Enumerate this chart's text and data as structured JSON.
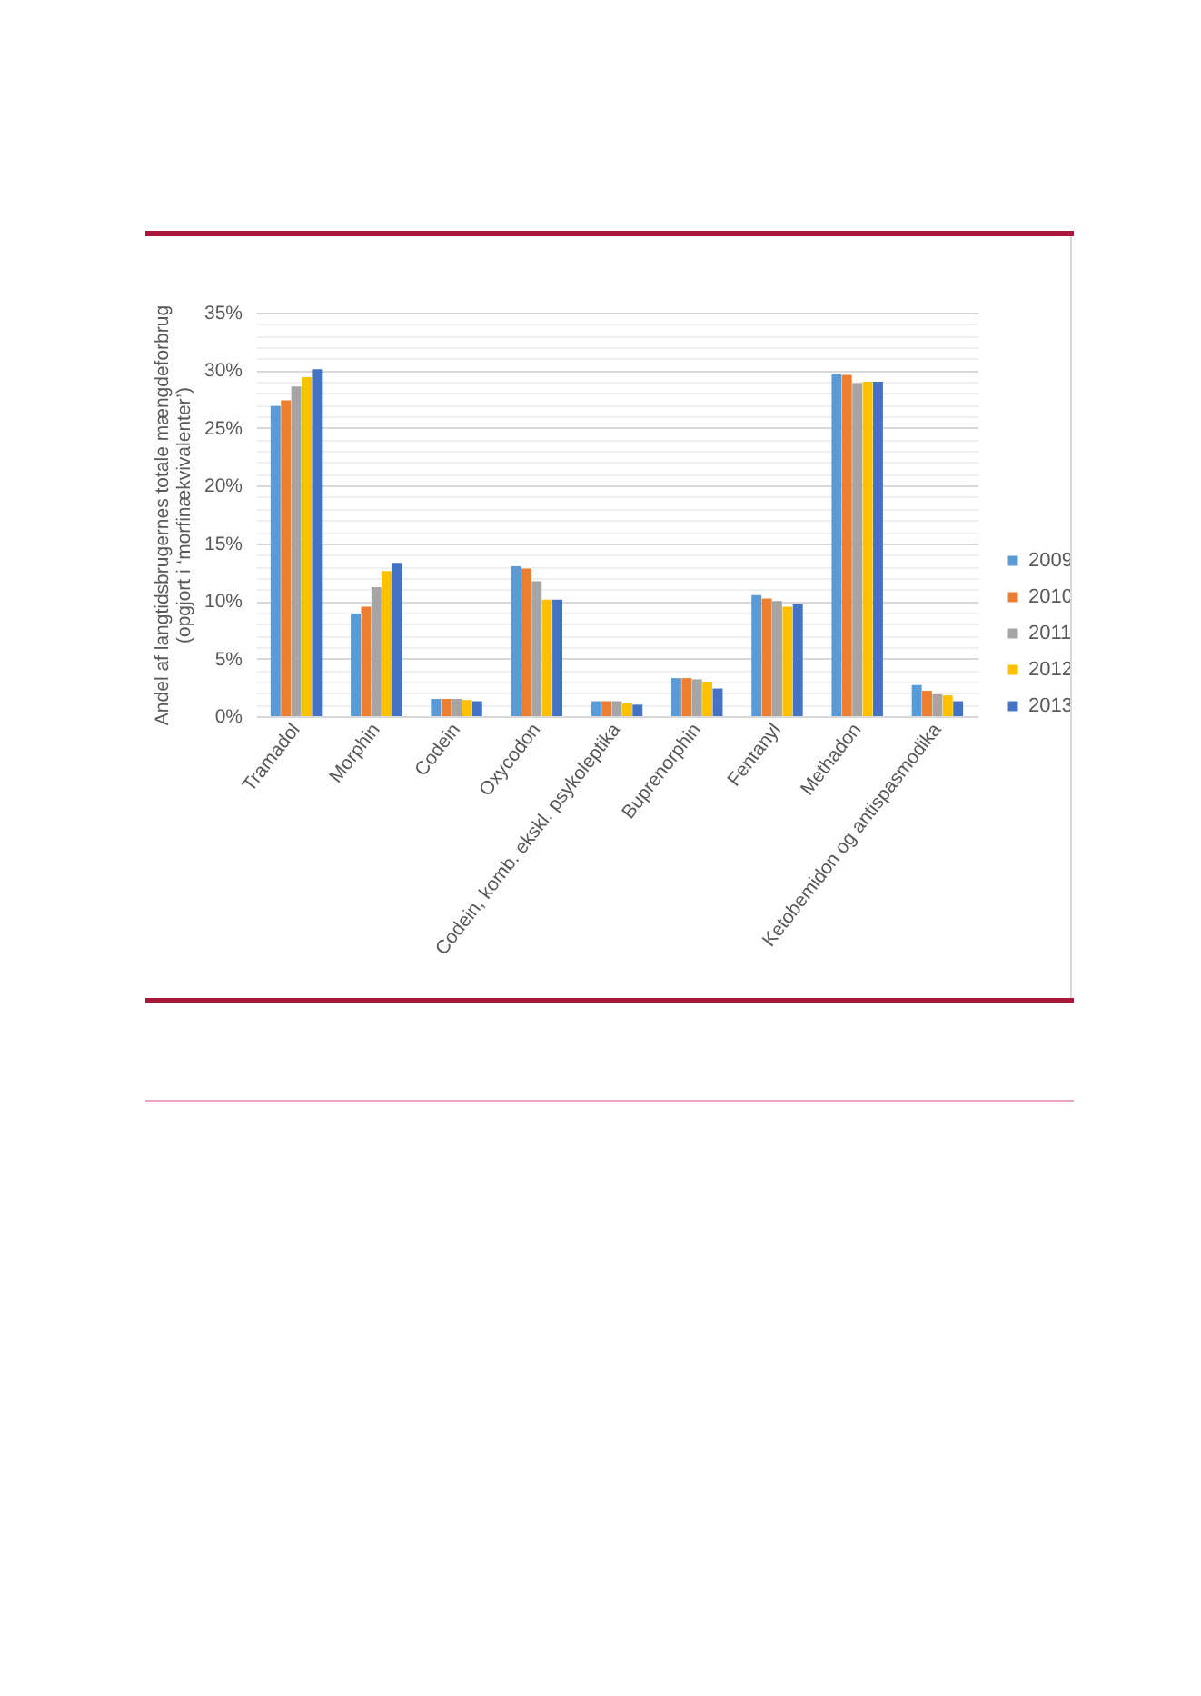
{
  "chart_data": {
    "type": "bar",
    "ylabel": "Andel af langtidsbrugernes totale mængdeforbrug\n(opgjort i ‘morfinækvivalenter’)",
    "categories": [
      "Tramadol",
      "Morphin",
      "Codein",
      "Oxycodon",
      "Codein, komb. ekskl. psykoleptika",
      "Buprenorphin",
      "Fentanyl",
      "Methadon",
      "Ketobemidon og antispasmodika"
    ],
    "series": [
      {
        "name": "2009",
        "color": "#5b9bd5",
        "values": [
          26.9,
          8.9,
          1.5,
          13.0,
          1.3,
          3.3,
          10.5,
          29.7,
          2.7
        ]
      },
      {
        "name": "2010",
        "color": "#ed7d31",
        "values": [
          27.4,
          9.5,
          1.5,
          12.8,
          1.3,
          3.3,
          10.2,
          29.6,
          2.2
        ]
      },
      {
        "name": "2011",
        "color": "#a5a5a5",
        "values": [
          28.6,
          11.2,
          1.5,
          11.7,
          1.3,
          3.2,
          10.0,
          28.9,
          1.9
        ]
      },
      {
        "name": "2012",
        "color": "#ffc000",
        "values": [
          29.4,
          12.6,
          1.4,
          10.1,
          1.1,
          3.0,
          9.5,
          29.0,
          1.8
        ]
      },
      {
        "name": "2013",
        "color": "#4472c4",
        "values": [
          30.1,
          13.3,
          1.3,
          10.1,
          1.0,
          2.4,
          9.7,
          29.0,
          1.3
        ]
      }
    ],
    "ylim": [
      0,
      35
    ],
    "yticks": [
      {
        "value": 0,
        "label": "0%"
      },
      {
        "value": 1,
        "label": null
      },
      {
        "value": 2,
        "label": null
      },
      {
        "value": 3,
        "label": null
      },
      {
        "value": 4,
        "label": null
      },
      {
        "value": 5,
        "label": "5%"
      },
      {
        "value": 6,
        "label": null
      },
      {
        "value": 7,
        "label": null
      },
      {
        "value": 8,
        "label": null
      },
      {
        "value": 9,
        "label": null
      },
      {
        "value": 10,
        "label": "10%"
      },
      {
        "value": 11,
        "label": null
      },
      {
        "value": 12,
        "label": null
      },
      {
        "value": 13,
        "label": null
      },
      {
        "value": 14,
        "label": null
      },
      {
        "value": 15,
        "label": "15%"
      },
      {
        "value": 16,
        "label": null
      },
      {
        "value": 17,
        "label": null
      },
      {
        "value": 18,
        "label": null
      },
      {
        "value": 19,
        "label": null
      },
      {
        "value": 20,
        "label": "20%"
      },
      {
        "value": 21,
        "label": null
      },
      {
        "value": 22,
        "label": null
      },
      {
        "value": 23,
        "label": null
      },
      {
        "value": 24,
        "label": null
      },
      {
        "value": 25,
        "label": "25%"
      },
      {
        "value": 26,
        "label": null
      },
      {
        "value": 27,
        "label": null
      },
      {
        "value": 28,
        "label": null
      },
      {
        "value": 29,
        "label": null
      },
      {
        "value": 30,
        "label": "30%"
      },
      {
        "value": 31,
        "label": null
      },
      {
        "value": 32,
        "label": null
      },
      {
        "value": 33,
        "label": null
      },
      {
        "value": 34,
        "label": null
      },
      {
        "value": 35,
        "label": "35%"
      }
    ],
    "grid": true,
    "legend": "right"
  }
}
